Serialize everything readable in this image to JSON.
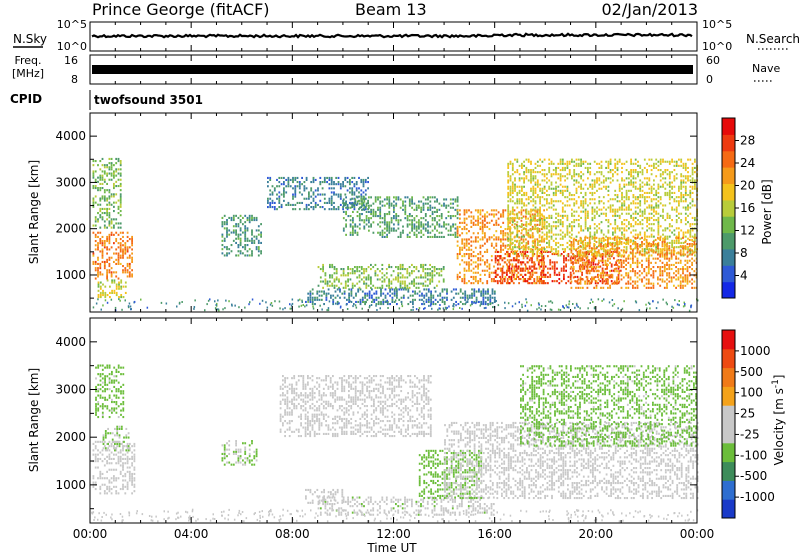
{
  "header": {
    "station": "Prince George (fitACF)",
    "beam": "Beam 13",
    "date": "02/Jan/2013"
  },
  "panels": {
    "nsky": {
      "label": "N.Sky",
      "ticks": [
        "10^5",
        "10^0"
      ],
      "right_label": "N.Search",
      "right_ticks": [
        "10^5",
        "10^0"
      ]
    },
    "freq": {
      "label_line1": "Freq.",
      "label_line2": "[MHz]",
      "ticks": [
        "16",
        "8"
      ],
      "right_label": "Nave",
      "right_ticks": [
        "60",
        "0"
      ]
    },
    "cpid": {
      "label": "CPID",
      "value": "twofsound 3501"
    }
  },
  "chart_data": [
    {
      "type": "heatmap",
      "name": "power",
      "ylabel": "Slant Range [km]",
      "ylim": [
        200,
        4500
      ],
      "yticks": [
        "4000",
        "3000",
        "2000",
        "1000"
      ],
      "colorbar": {
        "label": "Power [dB]",
        "ticks": [
          "28",
          "24",
          "20",
          "16",
          "12",
          "8",
          "4"
        ],
        "range": [
          0,
          30
        ],
        "colors": [
          "#1428e6",
          "#2f5ad6",
          "#3a7f9a",
          "#4d9a6a",
          "#6fb84a",
          "#b8cc3a",
          "#f4c21c",
          "#f59a1a",
          "#f56a14",
          "#ee3a10",
          "#e60a0a"
        ]
      },
      "clusters": [
        {
          "t0": 0.1,
          "t1": 1.7,
          "r0": 900,
          "r1": 1900,
          "value": 22
        },
        {
          "t0": 0.1,
          "t1": 1.2,
          "r0": 2000,
          "r1": 3500,
          "value": 12
        },
        {
          "t0": 0.3,
          "t1": 1.4,
          "r0": 500,
          "r1": 900,
          "value": 16
        },
        {
          "t0": 5.2,
          "t1": 6.8,
          "r0": 1400,
          "r1": 2300,
          "value": 9
        },
        {
          "t0": 7.0,
          "t1": 11.0,
          "r0": 2400,
          "r1": 3100,
          "value": 7
        },
        {
          "t0": 10.0,
          "t1": 14.5,
          "r0": 1800,
          "r1": 2700,
          "value": 10
        },
        {
          "t0": 9.0,
          "t1": 14.0,
          "r0": 700,
          "r1": 1200,
          "value": 13
        },
        {
          "t0": 8.5,
          "t1": 16.0,
          "r0": 350,
          "r1": 700,
          "value": 7
        },
        {
          "t0": 14.5,
          "t1": 18.0,
          "r0": 800,
          "r1": 2400,
          "value": 21
        },
        {
          "t0": 16.0,
          "t1": 21.0,
          "r0": 800,
          "r1": 1500,
          "value": 26
        },
        {
          "t0": 16.5,
          "t1": 24.0,
          "r0": 1400,
          "r1": 3500,
          "value": 16
        },
        {
          "t0": 19.0,
          "t1": 24.0,
          "r0": 700,
          "r1": 1800,
          "value": 21
        }
      ]
    },
    {
      "type": "heatmap",
      "name": "velocity",
      "ylabel": "Slant Range [km]",
      "ylim": [
        200,
        4500
      ],
      "yticks": [
        "4000",
        "3000",
        "2000",
        "1000"
      ],
      "colorbar": {
        "label": "Velocity [m s^-1]",
        "ticks": [
          "1000",
          "500",
          "100",
          "25",
          "-25",
          "-100",
          "-500",
          "-1000"
        ],
        "range": [
          -1000,
          1000
        ],
        "colors": [
          "#1a3ac8",
          "#2e6ed0",
          "#3d8c5a",
          "#6bbd3a",
          "#c8c8c8",
          "#c8c8c8",
          "#f4a21a",
          "#f07a18",
          "#ee4a12",
          "#e61010"
        ]
      },
      "clusters": [
        {
          "t0": 0.1,
          "t1": 1.8,
          "r0": 800,
          "r1": 1900,
          "value": 0
        },
        {
          "t0": 0.2,
          "t1": 1.3,
          "r0": 2400,
          "r1": 3500,
          "value": -250
        },
        {
          "t0": 0.5,
          "t1": 1.5,
          "r0": 1700,
          "r1": 2200,
          "value": -200
        },
        {
          "t0": 5.2,
          "t1": 6.6,
          "r0": 1400,
          "r1": 1900,
          "value": -200
        },
        {
          "t0": 7.5,
          "t1": 13.5,
          "r0": 2000,
          "r1": 3300,
          "value": 0
        },
        {
          "t0": 8.5,
          "t1": 10.0,
          "r0": 600,
          "r1": 900,
          "value": 60
        },
        {
          "t0": 9.0,
          "t1": 16.0,
          "r0": 350,
          "r1": 750,
          "value": -150
        },
        {
          "t0": 13.0,
          "t1": 15.5,
          "r0": 700,
          "r1": 1700,
          "value": -300
        },
        {
          "t0": 14.0,
          "t1": 24.0,
          "r0": 700,
          "r1": 2300,
          "value": 0
        },
        {
          "t0": 17.0,
          "t1": 24.0,
          "r0": 1800,
          "r1": 3500,
          "value": -250
        }
      ]
    }
  ],
  "xaxis": {
    "label": "Time UT",
    "ticks": [
      "00:00",
      "04:00",
      "08:00",
      "12:00",
      "16:00",
      "20:00",
      "00:00"
    ],
    "range_hours": [
      0,
      24
    ]
  }
}
